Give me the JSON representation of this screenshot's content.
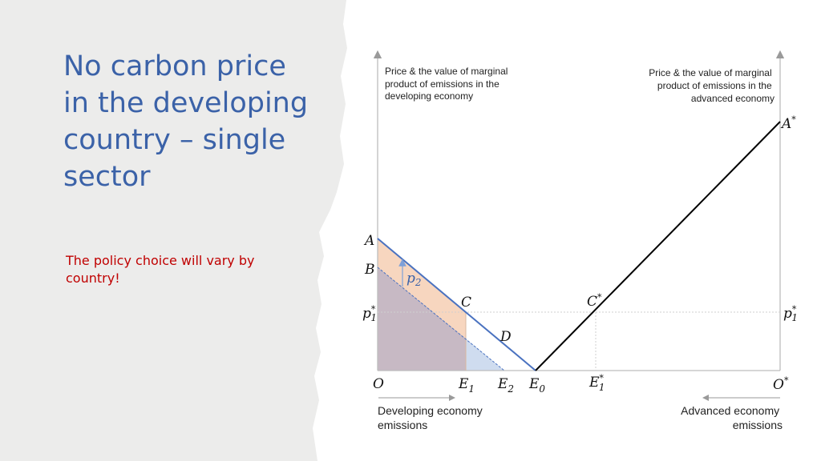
{
  "slide": {
    "title_lines": [
      "No carbon price",
      "in the developing",
      "country – single",
      "sector"
    ],
    "note_lines": [
      "The policy choice will vary by",
      "country!"
    ]
  },
  "colors": {
    "title": "#3b62a8",
    "note": "#c00000",
    "developing_curve": "#4a72c0",
    "advanced_curve": "#000000",
    "orange_area": "#f7d6bf",
    "mauve_area": "#c7b9c4",
    "blue_area": "#cfdcef",
    "left_panel": "#ececeb"
  },
  "diagram": {
    "left_axis_caption": [
      "Price & the value of marginal",
      "product of emissions in the",
      "developing economy"
    ],
    "right_axis_caption": [
      "Price & the value of marginal",
      "product of emissions in the",
      "advanced economy"
    ],
    "points": {
      "A": "A",
      "B": "B",
      "C": "C",
      "D": "D",
      "p2_base": "p",
      "p2_sub": "2",
      "p1_base": "p",
      "p1_sub": "1",
      "p1_sup": "*",
      "Cstar_base": "C",
      "Cstar_sup": "*",
      "Astar_base": "A",
      "Astar_sup": "*"
    },
    "x_labels": {
      "O": "O",
      "E1_base": "E",
      "E1_sub": "1",
      "E2_base": "E",
      "E2_sub": "2",
      "E0_base": "E",
      "E0_sub": "0",
      "E1s_base": "E",
      "E1s_sub": "1",
      "E1s_sup": "*",
      "Ostar_base": "O",
      "Ostar_sup": "*"
    },
    "footer_left": [
      "Developing economy",
      "emissions"
    ],
    "footer_right": [
      "Advanced economy",
      "emissions"
    ]
  }
}
